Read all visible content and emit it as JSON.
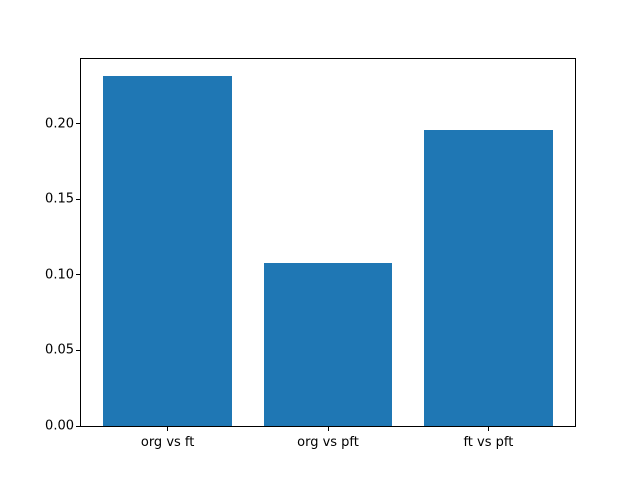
{
  "chart_data": {
    "type": "bar",
    "title": "",
    "xlabel": "",
    "ylabel": "",
    "categories": [
      "org vs ft",
      "org vs pft",
      "ft vs pft"
    ],
    "values": [
      0.232,
      0.108,
      0.196
    ],
    "bar_color": "#1f77b4",
    "bar_width": 0.8,
    "xlim": [
      -0.54,
      2.54
    ],
    "ylim": [
      0,
      0.243
    ],
    "ytick_values": [
      0,
      0.05,
      0.1,
      0.15,
      0.2
    ],
    "ytick_labels": [
      "0.00",
      "0.05",
      "0.10",
      "0.15",
      "0.20"
    ],
    "grid": false,
    "legend_position": "none",
    "background_color": "#ffffff",
    "spine_color": "#000000"
  }
}
